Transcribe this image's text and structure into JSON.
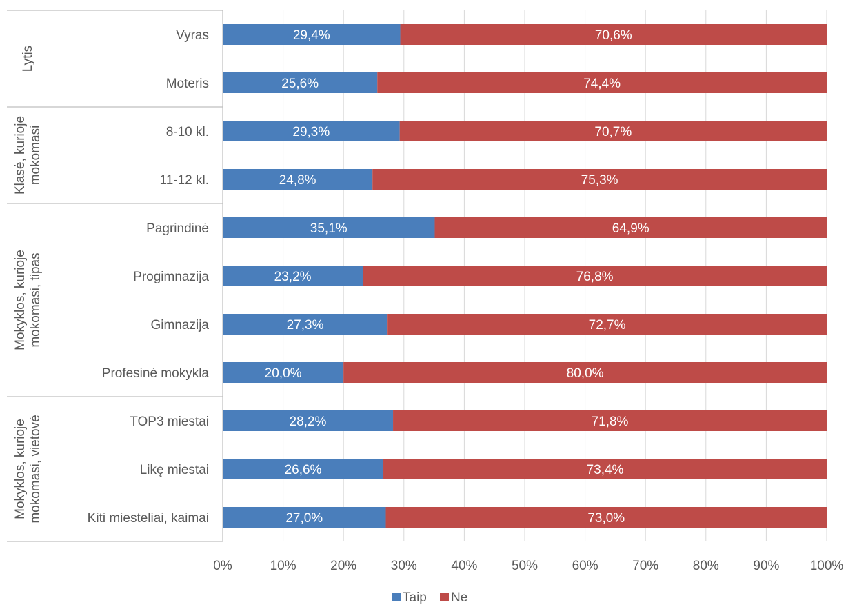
{
  "chart_data": {
    "type": "bar",
    "orientation": "horizontal",
    "stacked": true,
    "groups": [
      {
        "label": "Lytis",
        "categories": [
          "Vyras",
          "Moteris"
        ]
      },
      {
        "label": "Klasė, kurioje mokomasi",
        "categories": [
          "8-10 kl.",
          "11-12 kl."
        ]
      },
      {
        "label": "Mokyklos, kurioje mokomasi, tipas",
        "categories": [
          "Pagrindinė",
          "Progimnazija",
          "Gimnazija",
          "Profesinė mokykla"
        ]
      },
      {
        "label": "Mokyklos, kurioje mokomasi, vietovė",
        "categories": [
          "TOP3 miestai",
          "Likę miestai",
          "Kiti miesteliai, kaimai"
        ]
      }
    ],
    "categories": [
      "Vyras",
      "Moteris",
      "8-10 kl.",
      "11-12 kl.",
      "Pagrindinė",
      "Progimnazija",
      "Gimnazija",
      "Profesinė mokykla",
      "TOP3 miestai",
      "Likę miestai",
      "Kiti miesteliai, kaimai"
    ],
    "series": [
      {
        "name": "Taip",
        "color": "#4a7ebb",
        "values": [
          29.4,
          25.6,
          29.3,
          24.8,
          35.1,
          23.2,
          27.3,
          20.0,
          28.2,
          26.6,
          27.0
        ],
        "labels": [
          "29,4%",
          "25,6%",
          "29,3%",
          "24,8%",
          "35,1%",
          "23,2%",
          "27,3%",
          "20,0%",
          "28,2%",
          "26,6%",
          "27,0%"
        ]
      },
      {
        "name": "Ne",
        "color": "#be4b48",
        "values": [
          70.6,
          74.4,
          70.7,
          75.3,
          64.9,
          76.8,
          72.7,
          80.0,
          71.8,
          73.4,
          73.0
        ],
        "labels": [
          "70,6%",
          "74,4%",
          "70,7%",
          "75,3%",
          "64,9%",
          "76,8%",
          "72,7%",
          "80,0%",
          "71,8%",
          "73,4%",
          "73,0%"
        ]
      }
    ],
    "xlim": [
      0,
      100
    ],
    "x_ticks": [
      "0%",
      "10%",
      "20%",
      "30%",
      "40%",
      "50%",
      "60%",
      "70%",
      "80%",
      "90%",
      "100%"
    ],
    "grid": true,
    "legend_position": "bottom"
  }
}
